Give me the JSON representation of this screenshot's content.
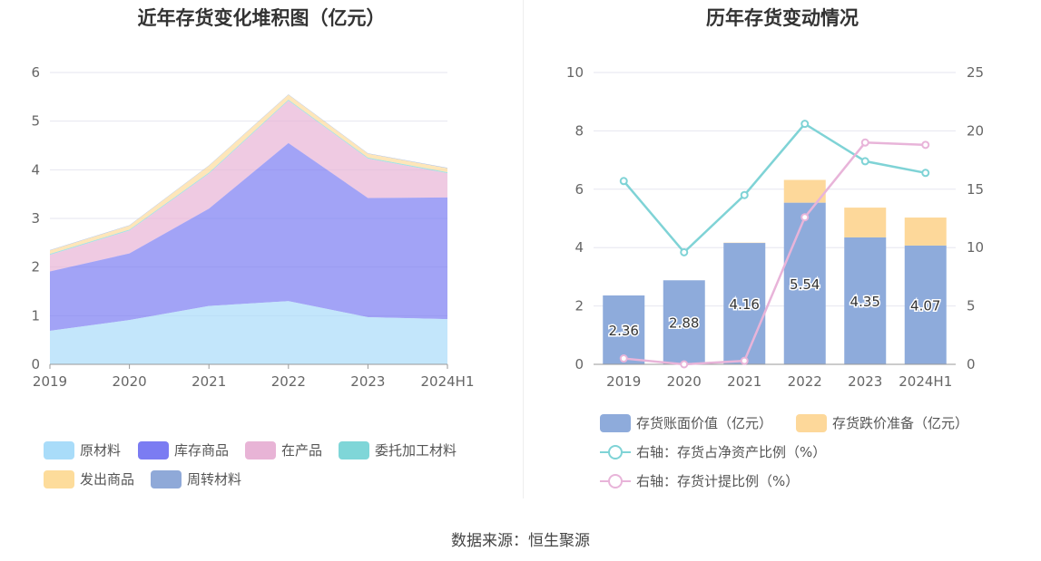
{
  "source_label": "数据来源：恒生聚源",
  "chart_data": [
    {
      "type": "area",
      "stacked": true,
      "title": "近年存货变化堆积图（亿元）",
      "categories": [
        "2019",
        "2020",
        "2021",
        "2022",
        "2023",
        "2024H1"
      ],
      "y_ticks": [
        "0",
        "1",
        "2",
        "3",
        "4",
        "5",
        "6"
      ],
      "ylim": [
        0,
        6
      ],
      "grid": true,
      "legend_position": "bottom",
      "series": [
        {
          "name": "原材料",
          "color": "#a9dcf9",
          "values": [
            0.69,
            0.91,
            1.2,
            1.3,
            0.97,
            0.93
          ]
        },
        {
          "name": "库存商品",
          "color": "#7b7cf2",
          "values": [
            1.22,
            1.37,
            2.0,
            3.25,
            2.45,
            2.5
          ]
        },
        {
          "name": "在产品",
          "color": "#e8b4d6",
          "values": [
            0.34,
            0.47,
            0.72,
            0.87,
            0.81,
            0.5
          ]
        },
        {
          "name": "委托加工材料",
          "color": "#7fd6d8",
          "values": [
            0.02,
            0.02,
            0.02,
            0.02,
            0.02,
            0.02
          ]
        },
        {
          "name": "发出商品",
          "color": "#fddc9b",
          "values": [
            0.07,
            0.08,
            0.14,
            0.1,
            0.08,
            0.08
          ]
        },
        {
          "name": "周转材料",
          "color": "#8fa9d8",
          "values": [
            0.01,
            0.01,
            0.01,
            0.01,
            0.01,
            0.01
          ]
        }
      ]
    },
    {
      "type": "bar",
      "stacked": true,
      "dual_axis": true,
      "title": "历年存货变动情况",
      "categories": [
        "2019",
        "2020",
        "2021",
        "2022",
        "2023",
        "2024H1"
      ],
      "y_left_ticks": [
        "0",
        "2",
        "4",
        "6",
        "8",
        "10"
      ],
      "y_right_ticks": [
        "0",
        "5",
        "10",
        "15",
        "20",
        "25"
      ],
      "ylim_left": [
        0,
        10
      ],
      "ylim_right": [
        0,
        25
      ],
      "grid": true,
      "legend_position": "bottom",
      "bar_series": [
        {
          "name": "存货账面价值（亿元）",
          "color": "#8eabdb",
          "values": [
            2.36,
            2.88,
            4.16,
            5.54,
            4.35,
            4.07
          ],
          "labels": [
            "2.36",
            "2.88",
            "4.16",
            "5.54",
            "4.35",
            "4.07"
          ]
        },
        {
          "name": "存货跌价准备（亿元）",
          "color": "#fdd89a",
          "values": [
            0.0,
            0.0,
            0.01,
            0.78,
            1.02,
            0.96
          ]
        }
      ],
      "line_series": [
        {
          "name": "右轴：存货占净资产比例（%）",
          "color": "#7fd3d6",
          "axis": "right",
          "values": [
            15.7,
            9.6,
            14.5,
            20.6,
            17.4,
            16.4
          ]
        },
        {
          "name": "右轴：存货计提比例（%）",
          "color": "#e8b4d9",
          "axis": "right",
          "values": [
            0.5,
            0.0,
            0.3,
            12.6,
            19.0,
            18.8
          ]
        }
      ]
    }
  ]
}
